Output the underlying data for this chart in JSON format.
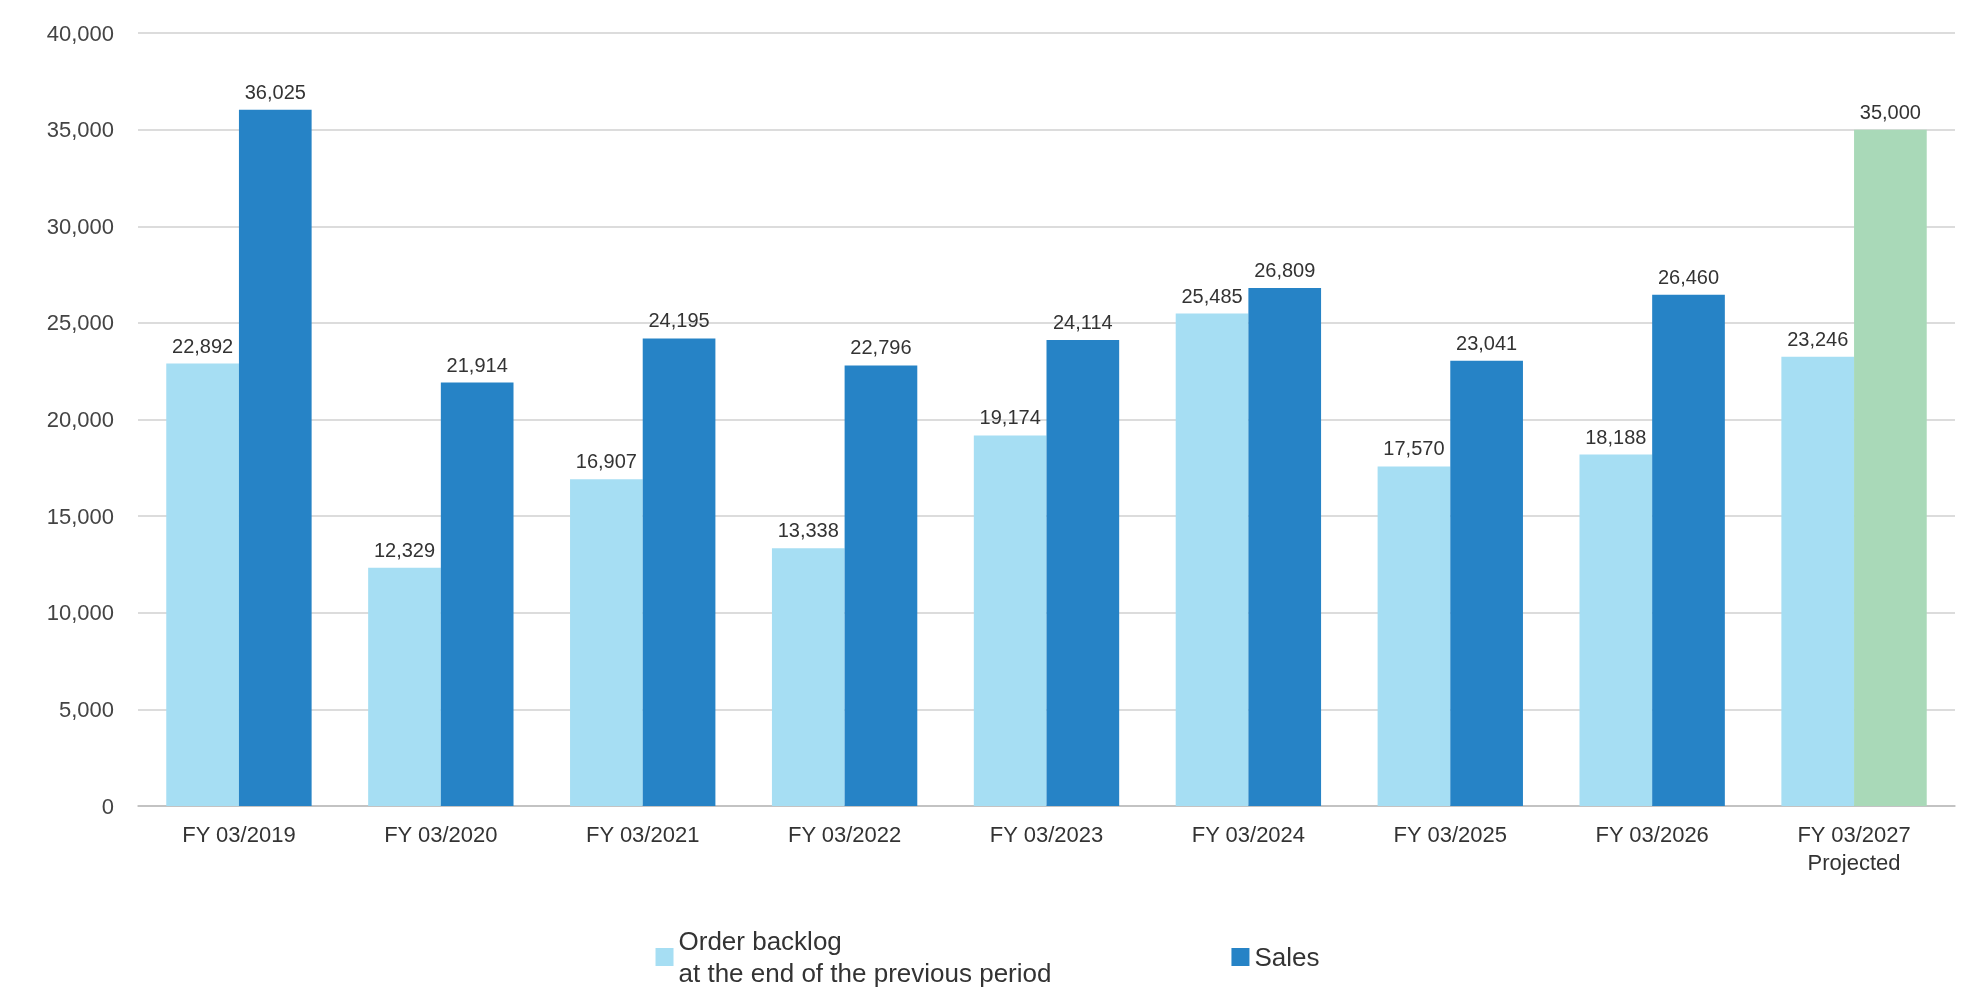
{
  "chart_data": {
    "type": "bar",
    "categories": [
      "FY 03/2019",
      "FY 03/2020",
      "FY 03/2021",
      "FY 03/2022",
      "FY 03/2023",
      "FY 03/2024",
      "FY 03/2025",
      "FY 03/2026",
      "FY 03/2027\nProjected"
    ],
    "series": [
      {
        "name": "Order backlog\nat the end of the previous period",
        "color": "#a6def3",
        "values": [
          22892,
          12329,
          16907,
          13338,
          19174,
          25485,
          17570,
          18188,
          23246
        ],
        "value_labels": [
          "22,892",
          "12,329",
          "16,907",
          "13,338",
          "19,174",
          "25,485",
          "17,570",
          "18,188",
          "23,246"
        ]
      },
      {
        "name": "Sales",
        "color": "#2683c6",
        "colors": [
          "#2683c6",
          "#2683c6",
          "#2683c6",
          "#2683c6",
          "#2683c6",
          "#2683c6",
          "#2683c6",
          "#2683c6",
          "#a9d9b8"
        ],
        "values": [
          36025,
          21914,
          24195,
          22796,
          24114,
          26809,
          23041,
          26460,
          35000
        ],
        "value_labels": [
          "36,025",
          "21,914",
          "24,195",
          "22,796",
          "24,114",
          "26,809",
          "23,041",
          "26,460",
          "35,000"
        ]
      }
    ],
    "ylim": [
      0,
      40000
    ],
    "yticks": [
      {
        "value": 0,
        "label": "0"
      },
      {
        "value": 5000,
        "label": "5,000"
      },
      {
        "value": 10000,
        "label": "10,000"
      },
      {
        "value": 15000,
        "label": "15,000"
      },
      {
        "value": 20000,
        "label": "20,000"
      },
      {
        "value": 25000,
        "label": "25,000"
      },
      {
        "value": 30000,
        "label": "30,000"
      },
      {
        "value": 35000,
        "label": "35,000"
      },
      {
        "value": 40000,
        "label": "40,000"
      }
    ],
    "grid": "y",
    "legend": "bottom"
  }
}
